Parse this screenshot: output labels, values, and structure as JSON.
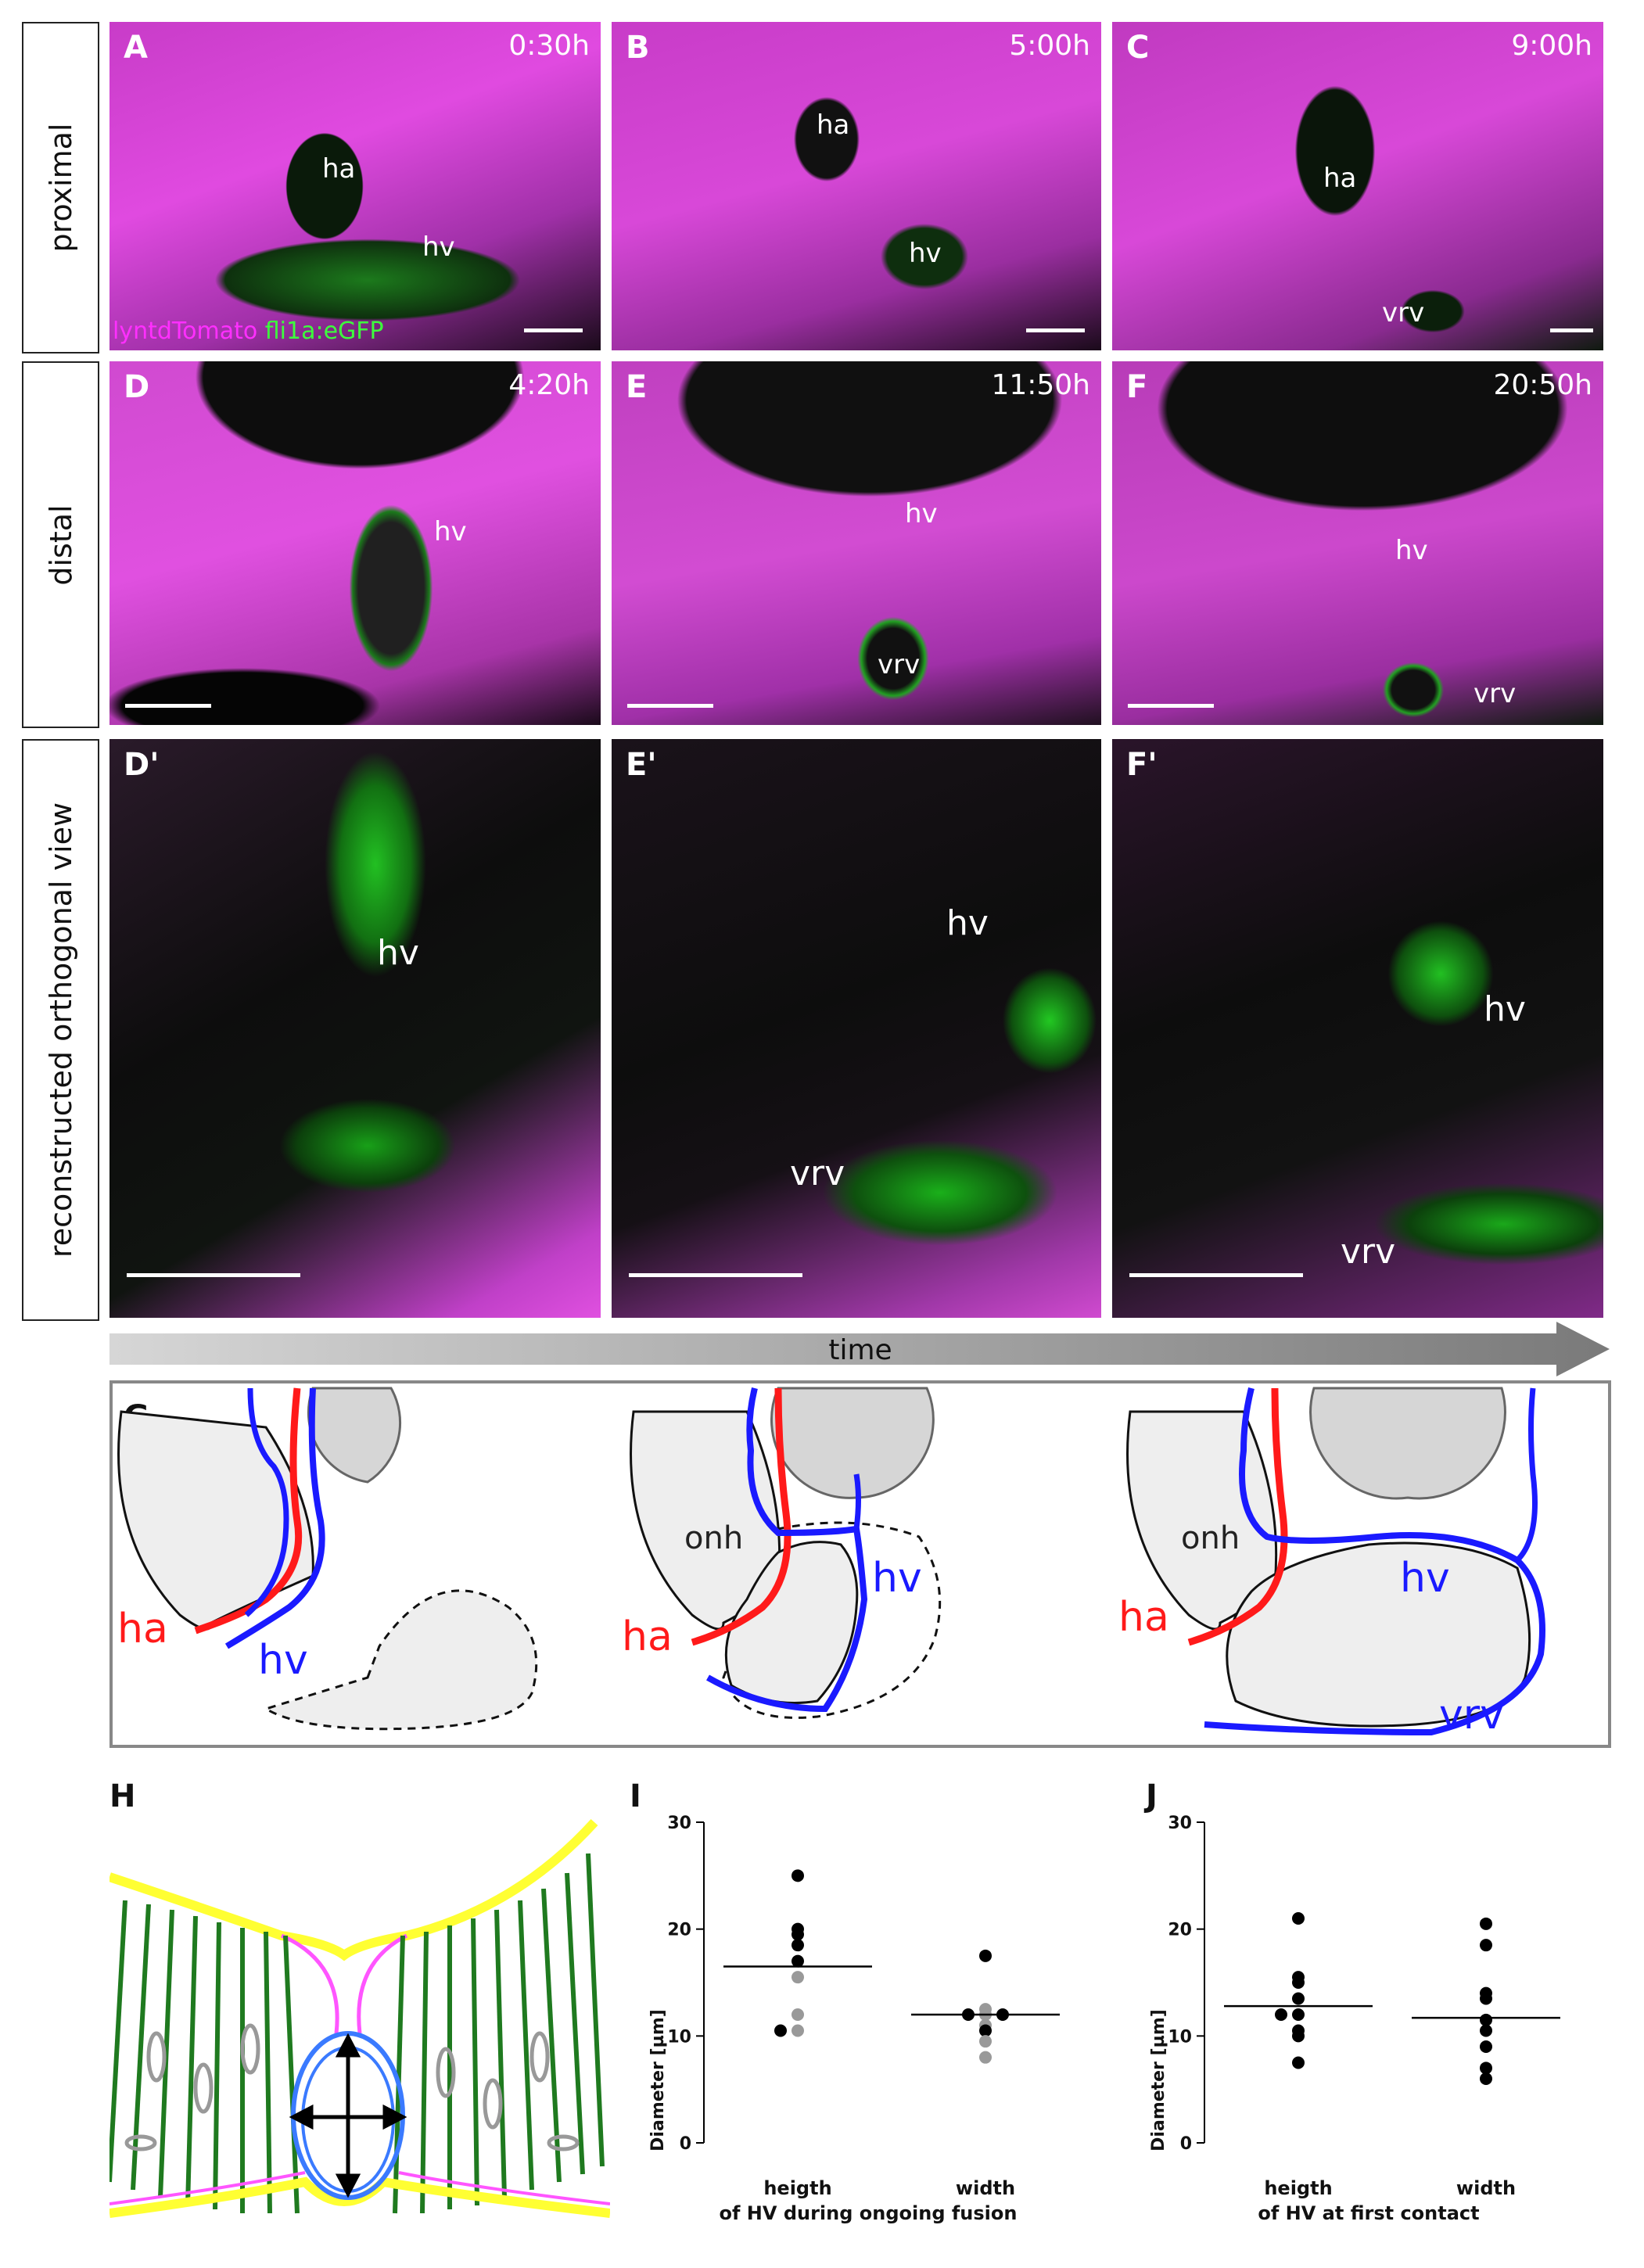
{
  "row_labels": [
    "proximal",
    "distal",
    "reconstructed  orthogonal view"
  ],
  "panels": [
    {
      "letter": "A",
      "time": "0:30h",
      "labels": [
        "ha",
        "hv"
      ]
    },
    {
      "letter": "B",
      "time": "5:00h",
      "labels": [
        "ha",
        "hv"
      ]
    },
    {
      "letter": "C",
      "time": "9:00h",
      "labels": [
        "ha",
        "vrv"
      ]
    },
    {
      "letter": "D",
      "time": "4:20h",
      "labels": [
        "hv"
      ]
    },
    {
      "letter": "E",
      "time": "11:50h",
      "labels": [
        "hv",
        "vrv"
      ]
    },
    {
      "letter": "F",
      "time": "20:50h",
      "labels": [
        "hv",
        "vrv"
      ]
    },
    {
      "letter": "D'",
      "time": "",
      "labels": [
        "hv"
      ]
    },
    {
      "letter": "E'",
      "time": "",
      "labels": [
        "hv",
        "vrv"
      ]
    },
    {
      "letter": "F'",
      "time": "",
      "labels": [
        "hv",
        "vrv"
      ]
    }
  ],
  "legend": {
    "magenta": "lyntdTomato",
    "green": "fli1a:eGFP"
  },
  "time_arrow": "time",
  "schematic": {
    "letter": "G",
    "labels": {
      "ha": "ha",
      "hv": "hv",
      "onh": "onh",
      "vrv": "vrv"
    }
  },
  "panel_h": {
    "letter": "H"
  },
  "colors": {
    "magenta": "#ff2fff",
    "green": "#3cff3c",
    "red": "#ff1a1a",
    "blue": "#1a1aff",
    "yellow": "#ffff33",
    "dark_green": "#1f7a1f"
  },
  "chart_data": [
    {
      "panel": "I",
      "type": "scatter",
      "ylabel": "Diameter [µm]",
      "ylim": [
        0,
        30
      ],
      "yticks": [
        0,
        10,
        20,
        30
      ],
      "categories": [
        "heigth",
        "width"
      ],
      "xlabel": "of HV during ongoing fusion",
      "series": [
        {
          "category": "heigth",
          "mean": 16.5,
          "points": [
            {
              "y": 25.0,
              "tone": "black"
            },
            {
              "y": 20.0,
              "tone": "black"
            },
            {
              "y": 19.5,
              "tone": "black"
            },
            {
              "y": 18.5,
              "tone": "black"
            },
            {
              "y": 17.0,
              "tone": "black"
            },
            {
              "y": 15.5,
              "tone": "gray"
            },
            {
              "y": 12.0,
              "tone": "gray"
            },
            {
              "y": 10.5,
              "tone": "gray"
            },
            {
              "y": 10.5,
              "tone": "black"
            }
          ]
        },
        {
          "category": "width",
          "mean": 12.0,
          "points": [
            {
              "y": 17.5,
              "tone": "black"
            },
            {
              "y": 12.5,
              "tone": "gray"
            },
            {
              "y": 12.0,
              "tone": "gray"
            },
            {
              "y": 12.0,
              "tone": "black"
            },
            {
              "y": 12.0,
              "tone": "black"
            },
            {
              "y": 11.0,
              "tone": "gray"
            },
            {
              "y": 10.5,
              "tone": "black"
            },
            {
              "y": 9.5,
              "tone": "gray"
            },
            {
              "y": 8.0,
              "tone": "gray"
            }
          ]
        }
      ]
    },
    {
      "panel": "J",
      "type": "scatter",
      "ylabel": "Diameter [µm]",
      "ylim": [
        0,
        30
      ],
      "yticks": [
        0,
        10,
        20,
        30
      ],
      "categories": [
        "heigth",
        "width"
      ],
      "xlabel": "of HV at first contact",
      "series": [
        {
          "category": "heigth",
          "mean": 12.8,
          "points": [
            {
              "y": 21.0,
              "tone": "black"
            },
            {
              "y": 15.5,
              "tone": "black"
            },
            {
              "y": 15.0,
              "tone": "black"
            },
            {
              "y": 13.5,
              "tone": "black"
            },
            {
              "y": 12.0,
              "tone": "black"
            },
            {
              "y": 12.0,
              "tone": "black"
            },
            {
              "y": 10.5,
              "tone": "black"
            },
            {
              "y": 10.0,
              "tone": "black"
            },
            {
              "y": 7.5,
              "tone": "black"
            }
          ]
        },
        {
          "category": "width",
          "mean": 11.7,
          "points": [
            {
              "y": 20.5,
              "tone": "black"
            },
            {
              "y": 18.5,
              "tone": "black"
            },
            {
              "y": 14.0,
              "tone": "black"
            },
            {
              "y": 13.5,
              "tone": "black"
            },
            {
              "y": 11.5,
              "tone": "black"
            },
            {
              "y": 10.5,
              "tone": "black"
            },
            {
              "y": 9.0,
              "tone": "black"
            },
            {
              "y": 7.0,
              "tone": "black"
            },
            {
              "y": 6.0,
              "tone": "black"
            }
          ]
        }
      ]
    }
  ]
}
